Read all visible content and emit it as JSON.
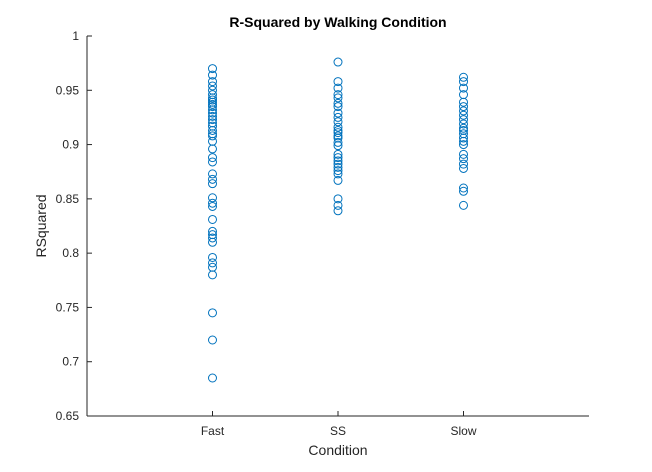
{
  "chart_data": {
    "type": "scatter",
    "title": "R-Squared by Walking Condition",
    "xlabel": "Condition",
    "ylabel": "RSquared",
    "categories": [
      "Fast",
      "SS",
      "Slow"
    ],
    "ylim": [
      0.65,
      1
    ],
    "yticks": [
      0.65,
      0.7,
      0.75,
      0.8,
      0.85,
      0.9,
      0.95,
      1
    ],
    "ytick_labels": [
      "0.65",
      "0.7",
      "0.75",
      "0.8",
      "0.85",
      "0.9",
      "0.95",
      "1"
    ],
    "grid": false,
    "marker": "open-circle",
    "marker_color": "#0072BD",
    "series": [
      {
        "values": [
          0.97,
          0.964,
          0.958,
          0.954,
          0.95,
          0.946,
          0.943,
          0.941,
          0.939,
          0.937,
          0.935,
          0.932,
          0.929,
          0.926,
          0.923,
          0.92,
          0.917,
          0.913,
          0.91,
          0.908,
          0.903,
          0.896,
          0.888,
          0.884,
          0.873,
          0.868,
          0.864,
          0.851,
          0.846,
          0.843,
          0.831,
          0.82,
          0.817,
          0.814,
          0.81,
          0.796,
          0.791,
          0.787,
          0.78,
          0.745,
          0.72,
          0.685
        ]
      },
      {
        "values": [
          0.976,
          0.958,
          0.952,
          0.946,
          0.943,
          0.938,
          0.935,
          0.929,
          0.925,
          0.921,
          0.916,
          0.913,
          0.911,
          0.908,
          0.906,
          0.902,
          0.899,
          0.891,
          0.888,
          0.885,
          0.882,
          0.879,
          0.876,
          0.873,
          0.867,
          0.85,
          0.844,
          0.839
        ]
      },
      {
        "values": [
          0.962,
          0.958,
          0.952,
          0.946,
          0.939,
          0.935,
          0.931,
          0.927,
          0.923,
          0.919,
          0.915,
          0.913,
          0.91,
          0.906,
          0.903,
          0.9,
          0.891,
          0.887,
          0.882,
          0.878,
          0.86,
          0.857,
          0.844
        ]
      }
    ]
  }
}
